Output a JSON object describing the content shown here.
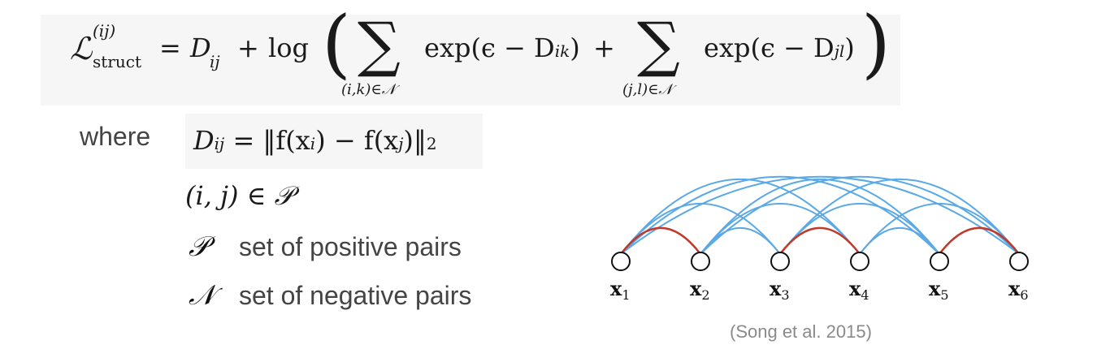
{
  "formula": {
    "lhs_symbol": "ℒ",
    "lhs_sup": "(ij)",
    "lhs_sub": "struct",
    "eq": "=",
    "d_ij": "D",
    "d_ij_sub": "ij",
    "plus1": "+",
    "log": "log",
    "term1": "exp(ϵ − D",
    "term1_sub": "ik",
    "term1_close": ")",
    "plus2": "+",
    "term2": "exp(ϵ − D",
    "term2_sub": "jl",
    "term2_close": ")",
    "sum1_limit": "(i,k)∈𝒩",
    "sum2_limit": "(j,l)∈𝒩",
    "sigma": "∑"
  },
  "where_block": {
    "where_label": "where",
    "dist_lhs": "D",
    "dist_lhs_sub": "ij",
    "dist_rhs": "= ‖f(x",
    "dist_i": "i",
    "dist_mid": ") − f(x",
    "dist_j": "j",
    "dist_end": ")‖",
    "dist_norm_sub": "2",
    "pair_def": "(i, j) ∈ 𝒫",
    "p_symbol": "𝒫",
    "p_desc": "set of positive pairs",
    "n_symbol": "𝒩",
    "n_desc": "set of negative pairs"
  },
  "diagram": {
    "nodes": [
      {
        "label": "x",
        "sub": "1"
      },
      {
        "label": "x",
        "sub": "2"
      },
      {
        "label": "x",
        "sub": "3"
      },
      {
        "label": "x",
        "sub": "4"
      },
      {
        "label": "x",
        "sub": "5"
      },
      {
        "label": "x",
        "sub": "6"
      }
    ],
    "positive_pairs": [
      [
        1,
        2
      ],
      [
        3,
        4
      ],
      [
        5,
        6
      ]
    ],
    "negative_edges": [
      [
        1,
        3
      ],
      [
        1,
        4
      ],
      [
        1,
        5
      ],
      [
        1,
        6
      ],
      [
        2,
        3
      ],
      [
        2,
        4
      ],
      [
        2,
        5
      ],
      [
        2,
        6
      ],
      [
        3,
        5
      ],
      [
        3,
        6
      ],
      [
        4,
        5
      ],
      [
        4,
        6
      ]
    ],
    "positive_color": "#c0392b",
    "negative_color": "#5aa9e6"
  },
  "citation": "(Song et al. 2015)"
}
